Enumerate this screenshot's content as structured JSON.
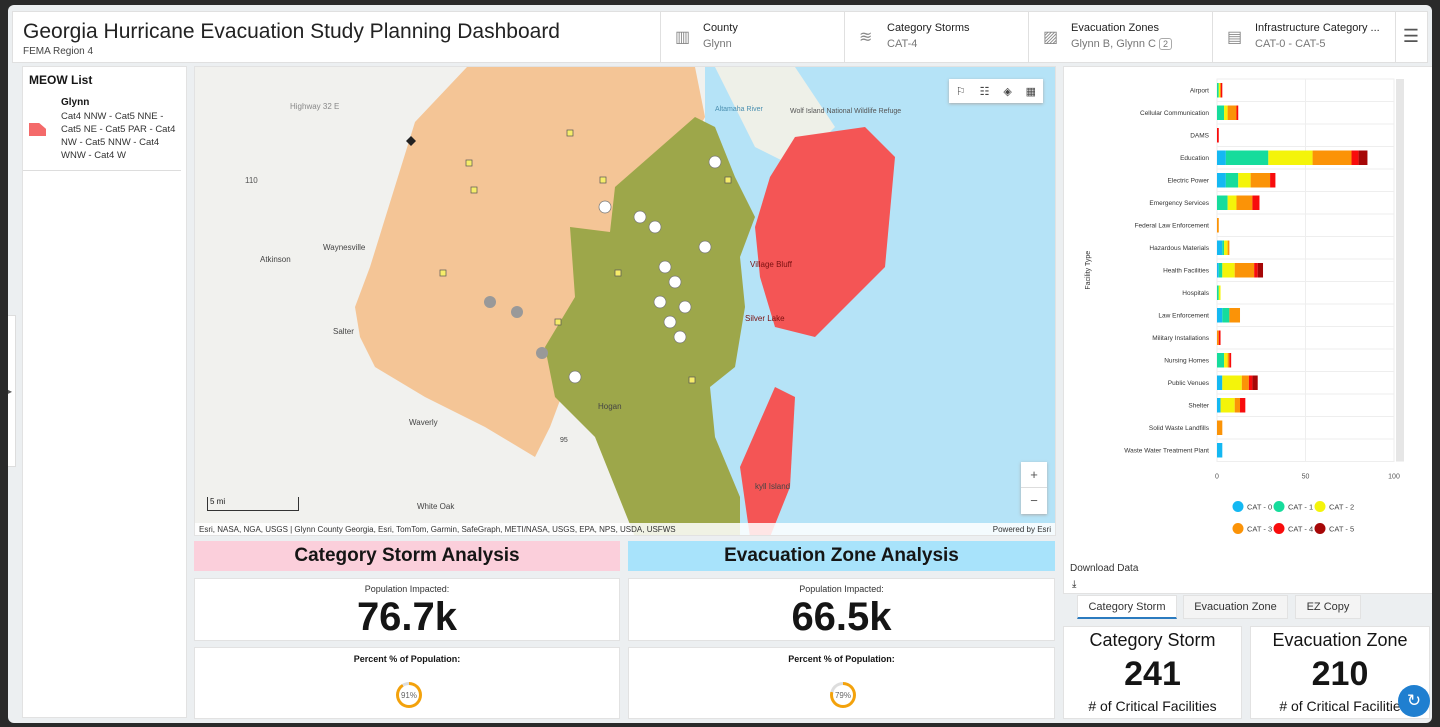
{
  "header": {
    "title": "Georgia Hurricane Evacuation Study Planning Dashboard",
    "subtitle": "FEMA Region 4",
    "menu_icon": "hamburger-icon"
  },
  "selectors": [
    {
      "label": "County",
      "value": "Glynn",
      "icon": "city-icon"
    },
    {
      "label": "Category Storms",
      "value": "CAT-4",
      "icon": "wind-icon"
    },
    {
      "label": "Evacuation Zones",
      "value": "Glynn B, Glynn C",
      "badge": "2",
      "icon": "map-zone-icon"
    },
    {
      "label": "Infrastructure Category ...",
      "value": "CAT-0 - CAT-5",
      "icon": "building-icon"
    }
  ],
  "meow": {
    "title": "MEOW List",
    "item_name": "Glynn",
    "item_desc": "Cat4 NNW - Cat5 NNE - Cat5 NE - Cat5 PAR - Cat4 NW - Cat5 NNW - Cat4 WNW - Cat4 W",
    "swatch": "#f46a6a"
  },
  "map": {
    "labels": {
      "highway": "Highway 32 E",
      "route": "110",
      "waynesville": "Waynesville",
      "atkinson": "Atkinson",
      "salter": "Salter",
      "waverly": "Waverly",
      "hogan": "Hogan",
      "white_oak": "White Oak",
      "wolf": "Wolf Island National Wildlife Refuge",
      "altamaha": "Altamaha River",
      "village_bluff": "Village Bluff",
      "silver_lake": "Silver Lake",
      "jekyll": "kyll Island",
      "i95": "95"
    },
    "scale": "5 mi",
    "attribution": "Esri, NASA, NGA, USGS | Glynn County Georgia, Esri, TomTom, Garmin, SafeGraph, METI/NASA, USGS, EPA, NPS, USDA, USFWS",
    "powered": "Powered by Esri",
    "zoom_in": "+",
    "zoom_out": "−"
  },
  "storm": {
    "title": "Category Storm Analysis",
    "pop_label": "Population Impacted:",
    "pop_value": "76.7k",
    "pct_label": "Percent % of Population:",
    "pct_text": "91%",
    "pct": 91,
    "color": "#fbcfdb"
  },
  "zone": {
    "title": "Evacuation Zone Analysis",
    "pop_label": "Population Impacted:",
    "pop_value": "66.5k",
    "pct_label": "Percent % of Population:",
    "pct_text": "79%",
    "pct": 79,
    "color": "#a8e3fb"
  },
  "download": {
    "label": "Download Data",
    "icon": "download-icon"
  },
  "tabs": [
    "Category Storm",
    "Evacuation Zone",
    "EZ Copy"
  ],
  "stats": [
    {
      "title": "Category Storm",
      "value": "241",
      "label": "# of Critical Facilities"
    },
    {
      "title": "Evacuation Zone",
      "value": "210",
      "label": "# of Critical Facilitie"
    }
  ],
  "chart_data": {
    "type": "bar",
    "orientation": "horizontal",
    "stacked": true,
    "ylabel": "Facility Type",
    "xlim": [
      0,
      100
    ],
    "xticks": [
      "0",
      "50",
      "100"
    ],
    "legend": "bottom",
    "categories": [
      "Airport",
      "Cellular Communication",
      "DAMS",
      "Education",
      "Electric Power",
      "Emergency Services",
      "Federal Law Enforcement",
      "Hazardous Materials",
      "Health Facilities",
      "Hospitals",
      "Law Enforcement",
      "Military Installations",
      "Nursing Homes",
      "Public Venues",
      "Shelter",
      "Solid Waste Landfills",
      "Waste Water Treatment Plant"
    ],
    "series": [
      {
        "name": "CAT - 0",
        "color": "#14b8f2",
        "values": [
          0,
          0,
          0,
          5,
          5,
          0,
          0,
          3,
          1,
          0,
          3,
          0,
          0,
          3,
          2,
          0,
          3
        ]
      },
      {
        "name": "CAT - 1",
        "color": "#16dc9c",
        "values": [
          1,
          4,
          0,
          24,
          7,
          6,
          0,
          1,
          2,
          1,
          4,
          0,
          4,
          0,
          0,
          0,
          0
        ]
      },
      {
        "name": "CAT - 2",
        "color": "#f4f40a",
        "values": [
          1,
          2,
          0,
          25,
          7,
          5,
          0,
          2,
          7,
          1,
          0,
          0,
          2,
          11,
          8,
          0,
          0
        ]
      },
      {
        "name": "CAT - 3",
        "color": "#fb9307",
        "values": [
          0,
          5,
          0,
          22,
          11,
          9,
          1,
          1,
          11,
          0,
          6,
          1,
          1,
          4,
          3,
          3,
          0
        ]
      },
      {
        "name": "CAT - 4",
        "color": "#f80c0c",
        "values": [
          1,
          1,
          1,
          4,
          3,
          4,
          0,
          0,
          2,
          0,
          0,
          1,
          1,
          2,
          3,
          0,
          0
        ]
      },
      {
        "name": "CAT - 5",
        "color": "#a60707",
        "values": [
          0,
          0,
          0,
          5,
          0,
          0,
          0,
          0,
          3,
          0,
          0,
          0,
          0,
          3,
          0,
          0,
          0
        ]
      }
    ]
  }
}
